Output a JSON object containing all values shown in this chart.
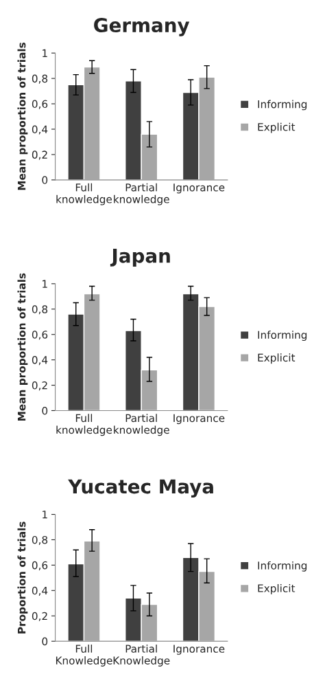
{
  "chart_data": [
    {
      "type": "bar",
      "title": "Germany",
      "ylabel": "Mean proportion of trials",
      "categories": [
        "Full\nknowledge",
        "Partial\nknowledge",
        "Ignorance"
      ],
      "ylim": [
        0,
        1
      ],
      "yticks": [
        0,
        {
          "value": 0.2,
          "label": "0,2"
        },
        {
          "value": 0.4,
          "label": "0,4"
        },
        {
          "value": 0.6,
          "label": "0,6"
        },
        {
          "value": 0.8,
          "label": "0,8"
        },
        1
      ],
      "legend": "right",
      "grid": false,
      "series": [
        {
          "name": "Informing",
          "color": "#404040",
          "values": [
            0.75,
            0.78,
            0.69
          ],
          "errors": [
            [
              0.67,
              0.83
            ],
            [
              0.69,
              0.87
            ],
            [
              0.59,
              0.79
            ]
          ]
        },
        {
          "name": "Explicit",
          "color": "#a6a6a6",
          "values": [
            0.89,
            0.36,
            0.81
          ],
          "errors": [
            [
              0.84,
              0.94
            ],
            [
              0.26,
              0.46
            ],
            [
              0.72,
              0.9
            ]
          ]
        }
      ]
    },
    {
      "type": "bar",
      "title": "Japan",
      "ylabel": "Mean proportion of trials",
      "categories": [
        "Full\nknowledge",
        "Partial\nknowledge",
        "Ignorance"
      ],
      "ylim": [
        0,
        1
      ],
      "yticks": [
        0,
        {
          "value": 0.2,
          "label": "0,2"
        },
        {
          "value": 0.4,
          "label": "0,4"
        },
        {
          "value": 0.6,
          "label": "0,6"
        },
        {
          "value": 0.8,
          "label": "0,8"
        },
        1
      ],
      "legend": "right",
      "grid": false,
      "series": [
        {
          "name": "Informing",
          "color": "#404040",
          "values": [
            0.76,
            0.63,
            0.92
          ],
          "errors": [
            [
              0.67,
              0.85
            ],
            [
              0.55,
              0.72
            ],
            [
              0.87,
              0.98
            ]
          ]
        },
        {
          "name": "Explicit",
          "color": "#a6a6a6",
          "values": [
            0.92,
            0.32,
            0.82
          ],
          "errors": [
            [
              0.87,
              0.98
            ],
            [
              0.23,
              0.42
            ],
            [
              0.75,
              0.89
            ]
          ]
        }
      ]
    },
    {
      "type": "bar",
      "title": "Yucatec Maya",
      "ylabel": "Proportion of trials",
      "categories": [
        "Full\nKnowledge",
        "Partial\nKnowledge",
        "Ignorance"
      ],
      "ylim": [
        0,
        1
      ],
      "yticks": [
        0,
        {
          "value": 0.2,
          "label": "0,2"
        },
        {
          "value": 0.4,
          "label": "0,4"
        },
        {
          "value": 0.6,
          "label": "0,6"
        },
        {
          "value": 0.8,
          "label": "0,8"
        },
        1
      ],
      "legend": "right",
      "grid": false,
      "series": [
        {
          "name": "Informing",
          "color": "#404040",
          "values": [
            0.61,
            0.34,
            0.66
          ],
          "errors": [
            [
              0.51,
              0.72
            ],
            [
              0.24,
              0.44
            ],
            [
              0.55,
              0.77
            ]
          ]
        },
        {
          "name": "Explicit",
          "color": "#a6a6a6",
          "values": [
            0.79,
            0.29,
            0.55
          ],
          "errors": [
            [
              0.71,
              0.88
            ],
            [
              0.2,
              0.38
            ],
            [
              0.46,
              0.65
            ]
          ]
        }
      ]
    }
  ]
}
